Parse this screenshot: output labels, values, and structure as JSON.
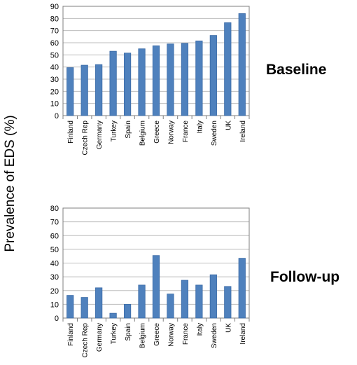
{
  "figure": {
    "ylabel": "Prevalence of EDS  (%)",
    "bar_color": "#4f81bd",
    "bar_edge_color": "#3a6aa6",
    "grid_color": "#bdbdbd",
    "axis_color": "#7f7f7f"
  },
  "chart_data": [
    {
      "type": "bar",
      "panel_label": "Baseline",
      "categories": [
        "Finland",
        "Czech Rep",
        "Germany",
        "Turkey",
        "Spain",
        "Belgium",
        "Greece",
        "Norway",
        "France",
        "Italy",
        "Sweden",
        "UK",
        "Ireland"
      ],
      "values": [
        39.5,
        41.5,
        42,
        53,
        51.5,
        55,
        57.5,
        59,
        59.5,
        61.5,
        66,
        76.5,
        84
      ],
      "ylim": [
        0,
        90
      ],
      "yticks": [
        0,
        10,
        20,
        30,
        40,
        50,
        60,
        70,
        80,
        90
      ],
      "grid": true,
      "legend": "none"
    },
    {
      "type": "bar",
      "panel_label": "Follow-up",
      "categories": [
        "Finland",
        "Czech Rep",
        "Germany",
        "Turkey",
        "Spain",
        "Belgium",
        "Greece",
        "Norway",
        "France",
        "Italy",
        "Sweden",
        "UK",
        "Ireland"
      ],
      "values": [
        16.5,
        15,
        22,
        3.5,
        10,
        24,
        45.5,
        17.5,
        27.5,
        24,
        31.5,
        23,
        43.5
      ],
      "ylim": [
        0,
        80
      ],
      "yticks": [
        0,
        10,
        20,
        30,
        40,
        50,
        60,
        70,
        80
      ],
      "grid": true,
      "legend": "none"
    }
  ]
}
